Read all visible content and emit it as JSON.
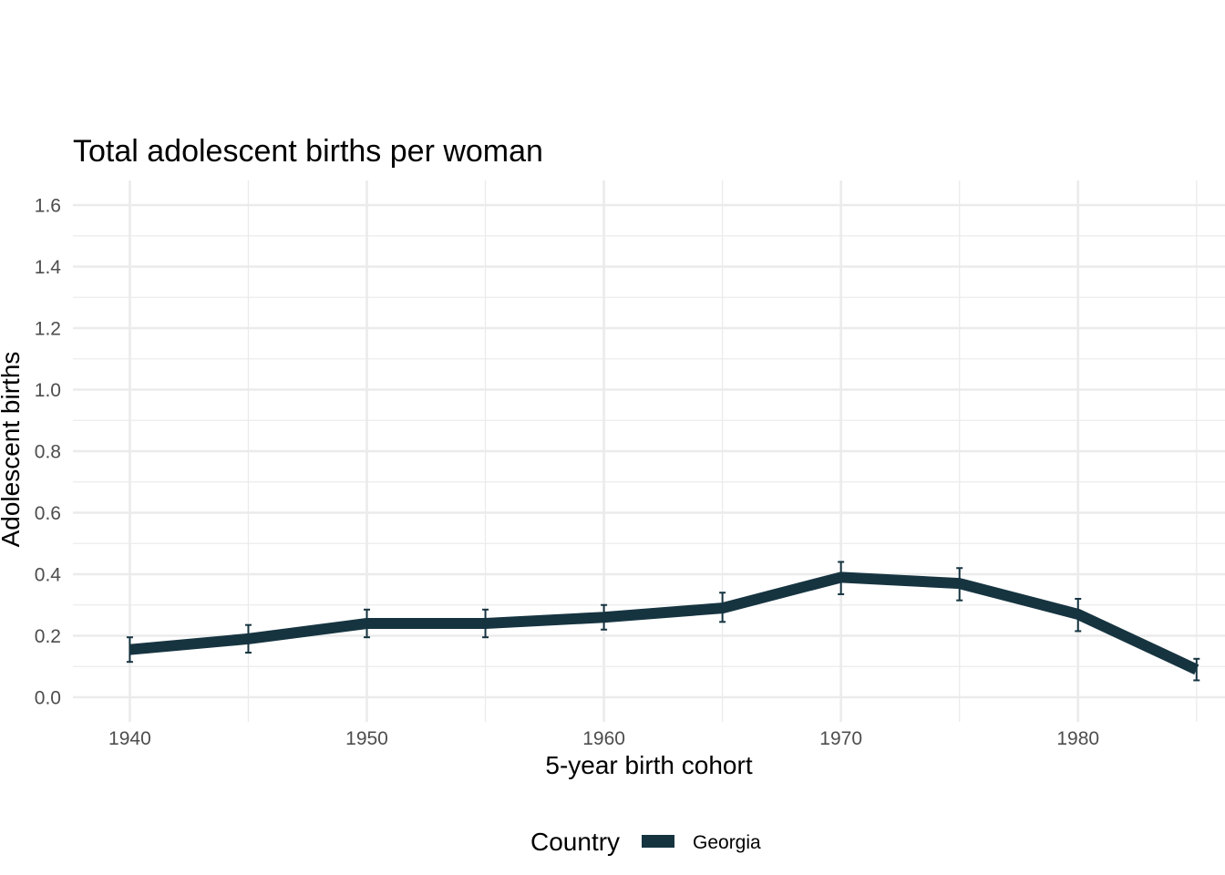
{
  "chart_data": {
    "type": "line",
    "title": "Total adolescent births per woman",
    "xlabel": "5-year birth cohort",
    "ylabel": "Adolescent births",
    "x": [
      1940,
      1945,
      1950,
      1955,
      1960,
      1965,
      1970,
      1975,
      1980,
      1985
    ],
    "xticks": [
      "1940",
      "1950",
      "1960",
      "1970",
      "1980"
    ],
    "yticks": [
      "0.0",
      "0.2",
      "0.4",
      "0.6",
      "0.8",
      "1.0",
      "1.2",
      "1.4",
      "1.6"
    ],
    "xlim": [
      1937.6,
      1986.2
    ],
    "ylim": [
      -0.08,
      1.68
    ],
    "grid": true,
    "legend": {
      "title": "Country",
      "position": "bottom"
    },
    "series": [
      {
        "name": "Georgia",
        "color": "#163440",
        "values": [
          0.155,
          0.19,
          0.24,
          0.24,
          0.26,
          0.29,
          0.39,
          0.37,
          0.27,
          0.09
        ],
        "error_low": [
          0.115,
          0.145,
          0.195,
          0.195,
          0.22,
          0.245,
          0.335,
          0.315,
          0.215,
          0.055
        ],
        "error_high": [
          0.195,
          0.235,
          0.285,
          0.285,
          0.3,
          0.34,
          0.44,
          0.42,
          0.32,
          0.125
        ]
      }
    ]
  }
}
